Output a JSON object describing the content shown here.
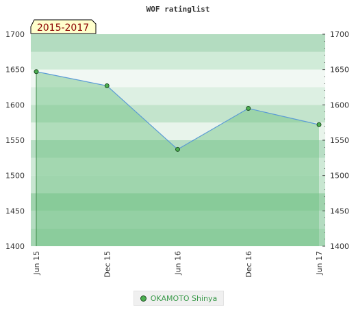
{
  "chart_data": {
    "type": "area",
    "title": "WOF ratinglist",
    "period_label": "2015-2017",
    "categories": [
      "Jun 15",
      "Dec 15",
      "Jun 16",
      "Dec 16",
      "Jun 17"
    ],
    "series": [
      {
        "name": "OKAMOTO Shinya",
        "values": [
          1647,
          1627,
          1537,
          1595,
          1572
        ]
      }
    ],
    "ylim": [
      1400,
      1700
    ],
    "yticks": [
      1400,
      1450,
      1500,
      1550,
      1600,
      1650,
      1700
    ],
    "grid": true,
    "legend_position": "bottom-center",
    "colors": {
      "line": "#5b9bd5",
      "fill": "#6cc080",
      "marker": "#4caf50",
      "marker_border": "#1f4f24",
      "period_bg": "#ffffcc",
      "period_text": "#8b0000",
      "legend_text": "#3a9a4a"
    }
  }
}
